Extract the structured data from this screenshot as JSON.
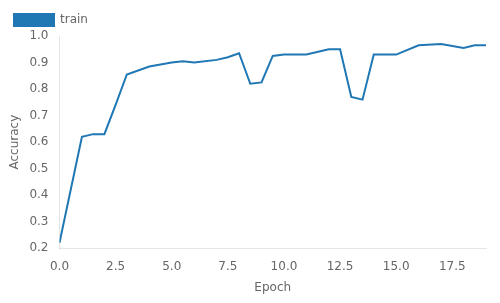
{
  "chart_data": {
    "type": "line",
    "x": [
      0,
      1,
      1.5,
      2,
      2.5,
      3,
      4,
      5,
      5.5,
      6,
      7,
      7.5,
      8,
      8.5,
      9,
      9.5,
      10,
      10.5,
      11,
      12,
      12.5,
      13,
      13.5,
      14,
      15,
      16,
      17,
      18,
      18.5,
      19
    ],
    "series": [
      {
        "name": "train",
        "color": "#1f77b4",
        "values": [
          0.22,
          0.62,
          0.63,
          0.63,
          0.74,
          0.855,
          0.885,
          0.9,
          0.905,
          0.9,
          0.91,
          0.92,
          0.935,
          0.82,
          0.825,
          0.925,
          0.93,
          0.93,
          0.93,
          0.95,
          0.95,
          0.77,
          0.76,
          0.93,
          0.93,
          0.965,
          0.97,
          0.955,
          0.965,
          0.965
        ]
      }
    ],
    "xlabel": "Epoch",
    "ylabel": "Accuracy",
    "xlim": [
      0.0,
      19.0
    ],
    "ylim": [
      0.2,
      1.0
    ],
    "xticks": [
      {
        "value": 0,
        "label": "0.0"
      },
      2.5,
      {
        "value": 5,
        "label": "5.0"
      },
      7.5,
      {
        "value": 10,
        "label": "10.0"
      },
      12.5,
      {
        "value": 15,
        "label": "15.0"
      },
      17.5
    ],
    "yticks": [
      0.2,
      0.3,
      0.4,
      0.5,
      0.6,
      0.7,
      0.8,
      0.9,
      {
        "value": 1.0,
        "label": "1.0"
      }
    ],
    "grid": false,
    "legend": "upper left"
  }
}
